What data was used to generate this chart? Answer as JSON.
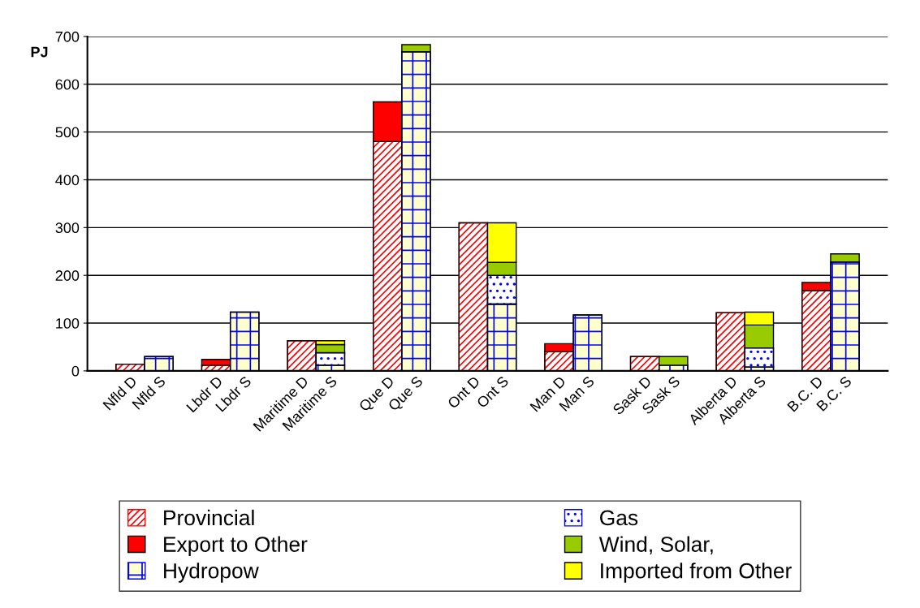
{
  "chart_data": {
    "type": "bar",
    "stacked": true,
    "ylabel": "PJ",
    "categories": [
      "Nfld D",
      "Nfld S",
      "Lbdr D",
      "Lbdr S",
      "Maritime D",
      "Maritime S",
      "Que D",
      "Que S",
      "Ont D",
      "Ont S",
      "Man D",
      "Man S",
      "Sask D",
      "Sask S",
      "Alberta D",
      "Alberta S",
      "B.C. D",
      "B.C. S"
    ],
    "series": [
      {
        "name": "Provincial",
        "color": "#ff0000",
        "values": [
          14,
          null,
          12,
          null,
          63,
          null,
          480,
          null,
          310,
          null,
          40,
          null,
          30,
          null,
          122,
          null,
          168,
          null
        ]
      },
      {
        "name": "Export to Other",
        "color": "#ff0000",
        "values": [
          null,
          null,
          12,
          null,
          null,
          null,
          83,
          null,
          null,
          null,
          17,
          null,
          null,
          null,
          null,
          null,
          17,
          null
        ]
      },
      {
        "name": "Hydropow",
        "color": "#0000ff",
        "values": [
          null,
          30,
          null,
          123,
          null,
          12,
          null,
          668,
          null,
          140,
          null,
          117,
          null,
          12,
          null,
          8,
          null,
          228
        ]
      },
      {
        "name": "Gas",
        "color": "#0000ff",
        "values": [
          null,
          null,
          null,
          null,
          null,
          26,
          null,
          null,
          null,
          60,
          null,
          null,
          null,
          null,
          null,
          40,
          null,
          null
        ]
      },
      {
        "name": "Wind, Solar,",
        "color": "#99cc00",
        "values": [
          null,
          null,
          null,
          null,
          null,
          17,
          null,
          15,
          null,
          27,
          null,
          null,
          null,
          18,
          null,
          48,
          null,
          17
        ]
      },
      {
        "name": "Imported from Other",
        "color": "#ffff00",
        "values": [
          null,
          null,
          null,
          null,
          null,
          8,
          null,
          null,
          null,
          83,
          null,
          null,
          null,
          null,
          null,
          27,
          null,
          null
        ]
      }
    ],
    "ylim": [
      0,
      700
    ],
    "yticks": [
      0,
      100,
      200,
      300,
      400,
      500,
      600,
      700
    ],
    "grid": "y",
    "legend": "bottom"
  }
}
